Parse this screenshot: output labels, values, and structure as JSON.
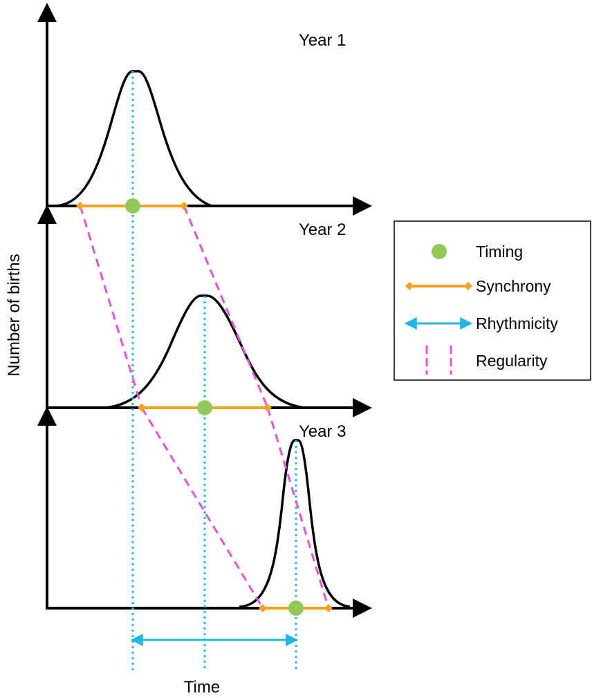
{
  "years": [
    {
      "label": "Year 1"
    },
    {
      "label": "Year 2"
    },
    {
      "label": "Year 3"
    }
  ],
  "axes": {
    "y_title": "Number of births",
    "x_title": "Time"
  },
  "legend": {
    "items": [
      {
        "label": "Timing",
        "symbol": "green-dot"
      },
      {
        "label": "Synchrony",
        "symbol": "orange-line-diamonds"
      },
      {
        "label": "Rhythmicity",
        "symbol": "blue-double-arrow"
      },
      {
        "label": "Regularity",
        "symbol": "magenta-dashed-lines"
      }
    ]
  },
  "colors": {
    "curve": "#000000",
    "timing": "#92c956",
    "synchrony": "#f5a21a",
    "rhythmicity": "#1fb6ea",
    "regularity": "#e84fe0"
  }
}
